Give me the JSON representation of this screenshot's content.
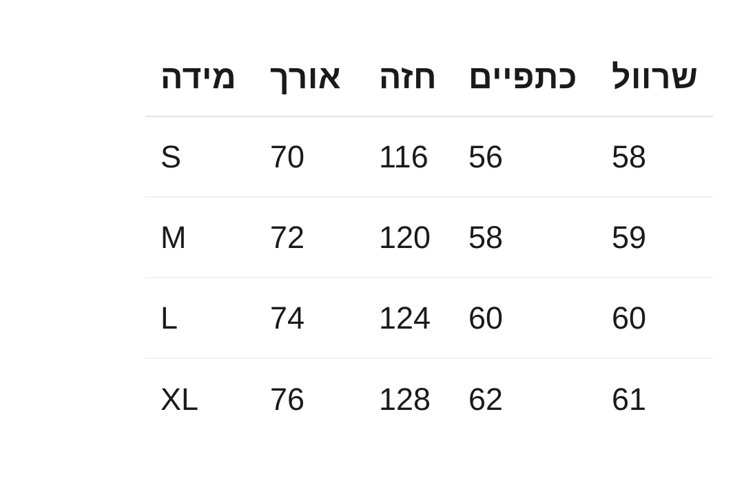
{
  "page": {
    "background_color": "#ffffff",
    "text_color": "#1a1a1a",
    "header_divider_color": "#e3e3e3",
    "row_divider_color": "#f1f1f1"
  },
  "table": {
    "columns": [
      {
        "id": "size",
        "label": "מידה"
      },
      {
        "id": "length",
        "label": "אורך"
      },
      {
        "id": "chest",
        "label": "חזה"
      },
      {
        "id": "shoulders",
        "label": "כתפיים"
      },
      {
        "id": "sleeve",
        "label": "שרוול"
      }
    ],
    "rows": [
      [
        "S",
        "70",
        "116",
        "56",
        "58"
      ],
      [
        "M",
        "72",
        "120",
        "58",
        "59"
      ],
      [
        "L",
        "74",
        "124",
        "60",
        "60"
      ],
      [
        "XL",
        "76",
        "128",
        "62",
        "61"
      ]
    ]
  }
}
